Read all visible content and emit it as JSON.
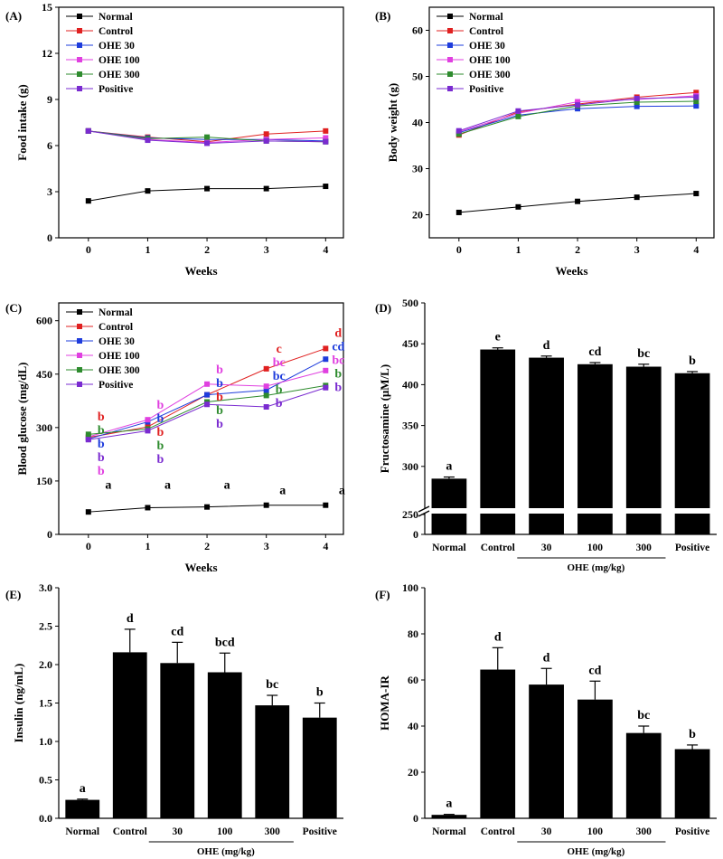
{
  "colors": {
    "Normal": "#000000",
    "Control": "#e02020",
    "OHE 30": "#1e3cdc",
    "OHE 100": "#e040e0",
    "OHE 300": "#2e8b2e",
    "Positive": "#7a2bd0"
  },
  "chart_data": [
    {
      "panel": "(A)",
      "type": "line",
      "xlabel": "Weeks",
      "ylabel": "Food intake (g)",
      "x": [
        0,
        1,
        2,
        3,
        4
      ],
      "xticks": [
        "0",
        "1",
        "2",
        "3",
        "4"
      ],
      "ylim": [
        0,
        15
      ],
      "yticks": [
        "0",
        "3",
        "6",
        "9",
        "12",
        "15"
      ],
      "legend": [
        "Normal",
        "Control",
        "OHE 30",
        "OHE 100",
        "OHE 300",
        "Positive"
      ],
      "series": [
        {
          "name": "Normal",
          "values": [
            2.4,
            3.05,
            3.2,
            3.2,
            3.35
          ]
        },
        {
          "name": "Control",
          "values": [
            6.95,
            6.55,
            6.25,
            6.75,
            6.95
          ]
        },
        {
          "name": "OHE 30",
          "values": [
            6.95,
            6.5,
            6.4,
            6.4,
            6.3
          ]
        },
        {
          "name": "OHE 100",
          "values": [
            6.95,
            6.4,
            6.2,
            6.4,
            6.5
          ]
        },
        {
          "name": "OHE 300",
          "values": [
            6.95,
            6.45,
            6.55,
            6.3,
            6.25
          ]
        },
        {
          "name": "Positive",
          "values": [
            6.95,
            6.35,
            6.15,
            6.3,
            6.25
          ]
        }
      ]
    },
    {
      "panel": "(B)",
      "type": "line",
      "xlabel": "Weeks",
      "ylabel": "Body weight (g)",
      "x": [
        0,
        1,
        2,
        3,
        4
      ],
      "xticks": [
        "0",
        "1",
        "2",
        "3",
        "4"
      ],
      "ylim": [
        15,
        65
      ],
      "yticks": [
        "20",
        "30",
        "40",
        "50",
        "60"
      ],
      "legend": [
        "Normal",
        "Control",
        "OHE 30",
        "OHE 100",
        "OHE 300",
        "Positive"
      ],
      "series": [
        {
          "name": "Normal",
          "values": [
            20.5,
            21.7,
            22.9,
            23.8,
            24.6
          ]
        },
        {
          "name": "Control",
          "values": [
            37.3,
            42.3,
            44.0,
            45.5,
            46.5
          ]
        },
        {
          "name": "OHE 30",
          "values": [
            37.8,
            41.6,
            43.0,
            43.5,
            43.6
          ]
        },
        {
          "name": "OHE 100",
          "values": [
            38.0,
            42.0,
            44.5,
            45.0,
            45.8
          ]
        },
        {
          "name": "OHE 300",
          "values": [
            37.5,
            41.3,
            43.6,
            44.4,
            44.6
          ]
        },
        {
          "name": "Positive",
          "values": [
            38.2,
            42.5,
            43.8,
            45.2,
            45.5
          ]
        }
      ]
    },
    {
      "panel": "(C)",
      "type": "line",
      "xlabel": "Weeks",
      "ylabel": "Blood glucose (mg/dL)",
      "x": [
        0,
        1,
        2,
        3,
        4
      ],
      "xticks": [
        "0",
        "1",
        "2",
        "3",
        "4"
      ],
      "ylim": [
        0,
        650
      ],
      "yticks": [
        "0",
        "150",
        "300",
        "450",
        "600"
      ],
      "legend": [
        "Normal",
        "Control",
        "OHE 30",
        "OHE 100",
        "OHE 300",
        "Positive"
      ],
      "series": [
        {
          "name": "Normal",
          "values": [
            63,
            75,
            77,
            82,
            82
          ]
        },
        {
          "name": "Control",
          "values": [
            272,
            302,
            392,
            465,
            522
          ]
        },
        {
          "name": "OHE 30",
          "values": [
            268,
            316,
            392,
            405,
            492
          ]
        },
        {
          "name": "OHE 100",
          "values": [
            274,
            322,
            422,
            416,
            460
          ]
        },
        {
          "name": "OHE 300",
          "values": [
            281,
            296,
            372,
            390,
            418
          ]
        },
        {
          "name": "Positive",
          "values": [
            266,
            291,
            365,
            358,
            412
          ]
        }
      ],
      "annotations": [
        {
          "x": 0,
          "labels": [
            {
              "text": "a",
              "series": "Normal"
            }
          ]
        },
        {
          "x": 1,
          "labels": [
            {
              "text": "a",
              "series": "Normal"
            }
          ]
        },
        {
          "x": 2,
          "labels": [
            {
              "text": "a",
              "series": "Normal"
            }
          ]
        },
        {
          "x": 3,
          "labels": [
            {
              "text": "a",
              "series": "Normal"
            }
          ]
        },
        {
          "x": 4,
          "labels": [
            {
              "text": "a",
              "series": "Normal"
            }
          ]
        },
        {
          "x": 0,
          "labels": [
            {
              "text": "b",
              "series": "Control"
            },
            {
              "text": "b",
              "series": "OHE 300"
            },
            {
              "text": "b",
              "series": "OHE 30"
            },
            {
              "text": "b",
              "series": "Positive"
            },
            {
              "text": "b",
              "series": "OHE 100"
            }
          ]
        },
        {
          "x": 1,
          "labels": [
            {
              "text": "b",
              "series": "OHE 100"
            },
            {
              "text": "b",
              "series": "OHE 30"
            },
            {
              "text": "b",
              "series": "Control"
            },
            {
              "text": "b",
              "series": "OHE 300"
            },
            {
              "text": "b",
              "series": "Positive"
            }
          ]
        },
        {
          "x": 2,
          "labels": [
            {
              "text": "b",
              "series": "OHE 100"
            },
            {
              "text": "b",
              "series": "OHE 30"
            },
            {
              "text": "b",
              "series": "Control"
            },
            {
              "text": "b",
              "series": "OHE 300"
            },
            {
              "text": "b",
              "series": "Positive"
            }
          ]
        },
        {
          "x": 3,
          "labels": [
            {
              "text": "c",
              "series": "Control"
            },
            {
              "text": "bc",
              "series": "OHE 100"
            },
            {
              "text": "bc",
              "series": "OHE 30"
            },
            {
              "text": "b",
              "series": "OHE 300"
            },
            {
              "text": "b",
              "series": "Positive"
            }
          ]
        },
        {
          "x": 4,
          "labels": [
            {
              "text": "d",
              "series": "Control"
            },
            {
              "text": "cd",
              "series": "OHE 30"
            },
            {
              "text": "bc",
              "series": "OHE 100"
            },
            {
              "text": "b",
              "series": "OHE 300"
            },
            {
              "text": "b",
              "series": "Positive"
            }
          ]
        }
      ]
    },
    {
      "panel": "(D)",
      "type": "bar",
      "ylabel": "Fructosamine (μM/L)",
      "categories": [
        "Normal",
        "Control",
        "30",
        "100",
        "300",
        "Positive"
      ],
      "values": [
        285,
        443,
        433,
        425,
        422,
        414
      ],
      "errors": [
        2,
        2,
        2,
        2,
        3,
        2
      ],
      "significance": [
        "a",
        "e",
        "d",
        "cd",
        "bc",
        "b"
      ],
      "ylim": [
        0,
        500
      ],
      "axis_break": [
        0,
        250
      ],
      "yticks": [
        "0",
        "250",
        "300",
        "350",
        "400",
        "450",
        "500"
      ],
      "group_label": "OHE (mg/kg)"
    },
    {
      "panel": "(E)",
      "type": "bar",
      "ylabel": "Insulin (ng/mL)",
      "categories": [
        "Normal",
        "Control",
        "30",
        "100",
        "300",
        "Positive"
      ],
      "values": [
        0.24,
        2.16,
        2.02,
        1.9,
        1.47,
        1.31
      ],
      "errors": [
        0.01,
        0.3,
        0.27,
        0.25,
        0.13,
        0.19
      ],
      "significance": [
        "a",
        "d",
        "cd",
        "bcd",
        "bc",
        "b"
      ],
      "ylim": [
        0,
        3.0
      ],
      "yticks": [
        "0.0",
        "0.5",
        "1.0",
        "1.5",
        "2.0",
        "2.5",
        "3.0"
      ],
      "group_label": "OHE (mg/kg)"
    },
    {
      "panel": "(F)",
      "type": "bar",
      "ylabel": "HOMA-IR",
      "categories": [
        "Normal",
        "Control",
        "30",
        "100",
        "300",
        "Positive"
      ],
      "values": [
        1.5,
        64.5,
        58,
        51.5,
        37,
        30
      ],
      "errors": [
        0.2,
        9.5,
        7,
        8,
        3,
        1.8
      ],
      "significance": [
        "a",
        "d",
        "d",
        "cd",
        "bc",
        "b"
      ],
      "ylim": [
        0,
        100
      ],
      "yticks": [
        "0",
        "20",
        "40",
        "60",
        "80",
        "100"
      ],
      "group_label": "OHE (mg/kg)"
    }
  ]
}
